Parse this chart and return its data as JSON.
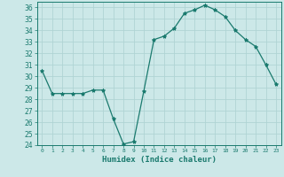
{
  "x": [
    0,
    1,
    2,
    3,
    4,
    5,
    6,
    7,
    8,
    9,
    10,
    11,
    12,
    13,
    14,
    15,
    16,
    17,
    18,
    19,
    20,
    21,
    22,
    23
  ],
  "y": [
    30.5,
    28.5,
    28.5,
    28.5,
    28.5,
    28.8,
    28.8,
    26.3,
    24.1,
    24.3,
    28.7,
    33.2,
    33.5,
    34.2,
    35.5,
    35.8,
    36.2,
    35.8,
    35.2,
    34.0,
    33.2,
    32.6,
    31.0,
    29.3
  ],
  "line_color": "#1a7a6e",
  "marker": "*",
  "marker_size": 3,
  "bg_color": "#cce8e8",
  "grid_color": "#b0d4d4",
  "xlabel": "Humidex (Indice chaleur)",
  "ylim": [
    24,
    36.5
  ],
  "yticks": [
    24,
    25,
    26,
    27,
    28,
    29,
    30,
    31,
    32,
    33,
    34,
    35,
    36
  ],
  "xticks": [
    0,
    1,
    2,
    3,
    4,
    5,
    6,
    7,
    8,
    9,
    10,
    11,
    12,
    13,
    14,
    15,
    16,
    17,
    18,
    19,
    20,
    21,
    22,
    23
  ],
  "xtick_labels": [
    "0",
    "1",
    "2",
    "3",
    "4",
    "5",
    "6",
    "7",
    "8",
    "9",
    "10",
    "11",
    "12",
    "13",
    "14",
    "15",
    "16",
    "17",
    "18",
    "19",
    "20",
    "21",
    "22",
    "23"
  ]
}
